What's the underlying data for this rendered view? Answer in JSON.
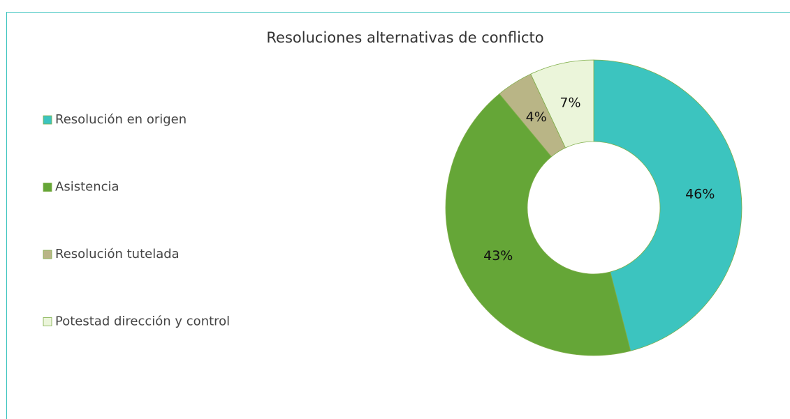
{
  "chart_data": {
    "type": "donut",
    "title": "Resoluciones alternativas de conflicto",
    "categories": [
      "Resolución en origen",
      "Asistencia",
      "Resolución tutelada",
      "Potestad dirección y control"
    ],
    "values": [
      46,
      43,
      4,
      7
    ],
    "value_labels": [
      "46%",
      "43%",
      "4%",
      "7%"
    ],
    "colors": [
      "#3cc4bf",
      "#65a637",
      "#b9b586",
      "#ebf5da"
    ],
    "legend": "left"
  }
}
